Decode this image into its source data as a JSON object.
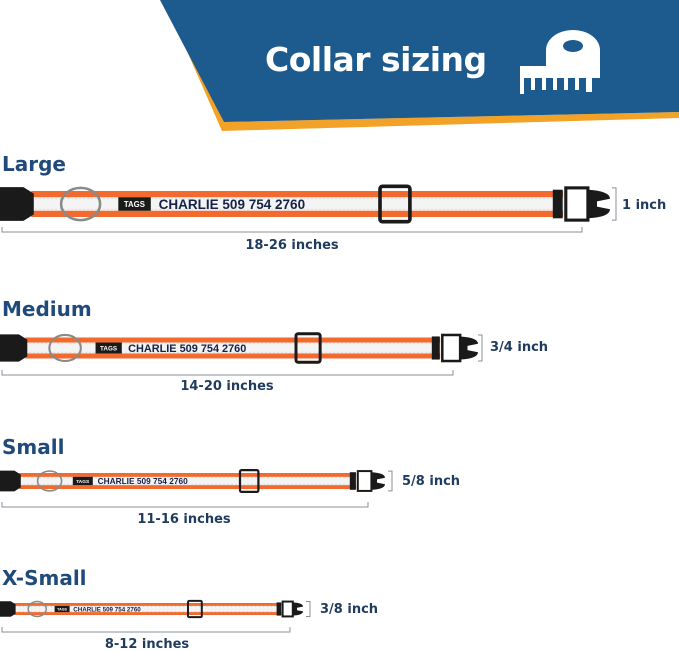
{
  "header": {
    "title": "Collar sizing",
    "icon": "measuring-tape-icon",
    "colors": {
      "banner": "#1d5a8e",
      "accent": "#f2a327"
    }
  },
  "collar_text": "CHARLIE 509 754 2760",
  "tag_logo": "TAGS",
  "colors": {
    "band": "#f26a2e",
    "reflective": "#f4f4f4",
    "hardware": "#1a1a1a",
    "label": "#1f4a7a"
  },
  "sizes": [
    {
      "name": "Large",
      "length": "18-26 inches",
      "width": "1 inch"
    },
    {
      "name": "Medium",
      "length": "14-20 inches",
      "width": "3/4 inch"
    },
    {
      "name": "Small",
      "length": "11-16 inches",
      "width": "5/8 inch"
    },
    {
      "name": "X-Small",
      "length": "8-12 inches",
      "width": "3/8 inch"
    }
  ]
}
